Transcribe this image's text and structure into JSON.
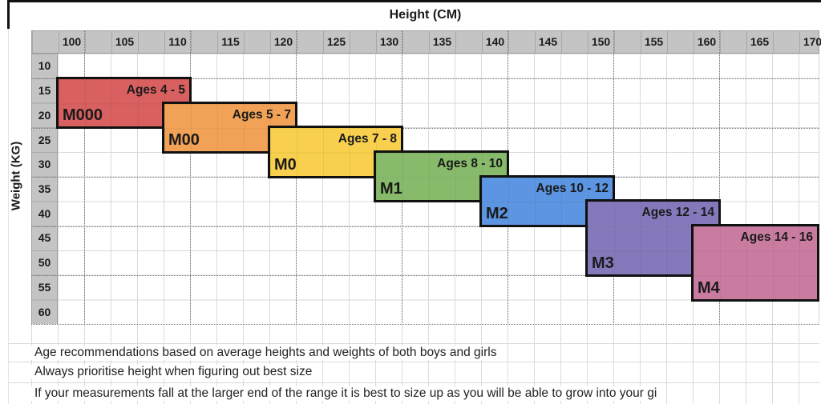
{
  "chart_data": {
    "type": "heatmap",
    "title": "Height (CM)",
    "xlabel": "Height (CM)",
    "ylabel": "Weight (KG)",
    "x_axis": {
      "label": "Height (CM)",
      "unit": "cm",
      "range": [
        100,
        170
      ],
      "ticks": [
        "100",
        "105",
        "110",
        "115",
        "120",
        "125",
        "130",
        "135",
        "140",
        "145",
        "150",
        "155",
        "160",
        "165",
        "170"
      ]
    },
    "y_axis": {
      "label": "Weight (KG)",
      "unit": "kg",
      "range": [
        10,
        60
      ],
      "ticks": [
        "10",
        "15",
        "20",
        "25",
        "30",
        "35",
        "40",
        "45",
        "50",
        "55",
        "60"
      ]
    },
    "grid": true,
    "legend_position": "none",
    "series": [
      {
        "name": "M000",
        "age_label": "Ages 4 - 5",
        "height_cm": [
          100,
          110
        ],
        "weight_kg": [
          15,
          20
        ],
        "color": "#d96060"
      },
      {
        "name": "M00",
        "age_label": "Ages 5 - 7",
        "height_cm": [
          110,
          120
        ],
        "weight_kg": [
          20,
          25
        ],
        "color": "#f1a256"
      },
      {
        "name": "M0",
        "age_label": "Ages 7 - 8",
        "height_cm": [
          120,
          130
        ],
        "weight_kg": [
          25,
          30
        ],
        "color": "#f8d04e"
      },
      {
        "name": "M1",
        "age_label": "Ages 8 - 10",
        "height_cm": [
          130,
          140
        ],
        "weight_kg": [
          30,
          35
        ],
        "color": "#87bb6b"
      },
      {
        "name": "M2",
        "age_label": "Ages 10 - 12",
        "height_cm": [
          140,
          150
        ],
        "weight_kg": [
          35,
          40
        ],
        "color": "#5c95e1"
      },
      {
        "name": "M3",
        "age_label": "Ages 12 - 14",
        "height_cm": [
          150,
          160
        ],
        "weight_kg": [
          40,
          50
        ],
        "color": "#8579bc"
      },
      {
        "name": "M4",
        "age_label": "Ages 14 - 16",
        "height_cm": [
          160,
          170
        ],
        "weight_kg": [
          45,
          55
        ],
        "color": "#c97ca0"
      }
    ]
  },
  "notes": [
    "Age recommendations based on average heights and weights of both boys and girls",
    "Always prioritise height when figuring out best size",
    "If your measurements fall at the larger end of the range it is best to size up as you will be able to grow into your gi"
  ],
  "colors": {
    "header_band": "#c4c4c4",
    "light_grid": "#d9d9d9",
    "dark_grid_dotted": "#787878",
    "block_border": "#111111"
  }
}
